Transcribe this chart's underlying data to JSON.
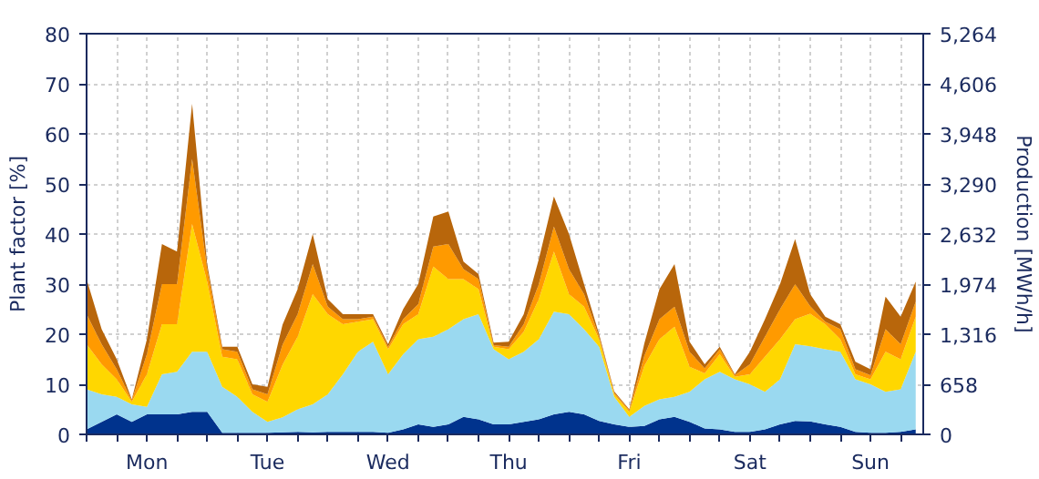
{
  "chart_data": {
    "type": "area",
    "stacked": true,
    "ylabel": "Plant factor [%]",
    "y2label": "Production [MWh/h]",
    "categories": [
      null,
      null,
      null,
      null,
      "Mon",
      null,
      null,
      null,
      null,
      null,
      null,
      null,
      "Tue",
      null,
      null,
      null,
      null,
      null,
      null,
      null,
      "Wed",
      null,
      null,
      null,
      null,
      null,
      null,
      null,
      "Thu",
      null,
      null,
      null,
      null,
      null,
      null,
      null,
      "Fri",
      null,
      null,
      null,
      null,
      null,
      null,
      null,
      "Sat",
      null,
      null,
      null,
      null,
      null,
      null,
      null,
      "Sun",
      null,
      null,
      null
    ],
    "series": [
      {
        "color": "#00338d",
        "values": [
          1,
          2.5,
          4,
          2.5,
          4,
          4,
          4,
          4.5,
          4.5,
          0.3,
          0.3,
          0.3,
          0.3,
          0.4,
          0.5,
          0.4,
          0.5,
          0.5,
          0.5,
          0.5,
          0.3,
          1,
          2,
          1.5,
          2,
          3.5,
          3,
          2,
          2,
          2.5,
          3,
          4,
          4.5,
          4,
          2.7,
          2,
          1.5,
          1.7,
          3,
          3.5,
          2.5,
          1.2,
          1,
          0.5,
          0.5,
          1,
          2,
          2.7,
          2.6,
          2,
          1.5,
          0.5,
          0.3,
          0.3,
          0.5,
          1
        ]
      },
      {
        "color": "#9ad9f0",
        "values": [
          8,
          5.5,
          3.5,
          3.5,
          1.5,
          8,
          8.5,
          12,
          12,
          9.2,
          7.2,
          4.2,
          2.2,
          3,
          4.5,
          5.6,
          7.5,
          11.5,
          16,
          18,
          11.7,
          15,
          17,
          18,
          19,
          19.5,
          21,
          15,
          13,
          14,
          16,
          20.5,
          19.5,
          17,
          14.8,
          5.5,
          2,
          4,
          4,
          4,
          6,
          9.8,
          11.5,
          10.5,
          9.5,
          7.5,
          9,
          15.3,
          15,
          15,
          15,
          10.5,
          9.7,
          8.2,
          8.5,
          15.5
        ]
      },
      {
        "color": "#ffd700",
        "values": [
          9,
          6,
          3.5,
          0.5,
          6.5,
          10,
          9.5,
          25.5,
          14,
          6,
          7.5,
          3.5,
          4,
          10.5,
          14.5,
          22,
          16,
          10,
          6,
          4.5,
          5,
          6,
          5,
          14,
          10,
          8,
          5,
          0.5,
          2,
          4,
          8,
          12,
          4,
          4.5,
          1.5,
          0.5,
          1,
          8,
          12,
          14,
          5,
          1.2,
          3.5,
          0.5,
          2,
          7,
          8,
          5,
          6.5,
          5,
          2.5,
          1,
          1,
          8,
          6,
          7
        ]
      },
      {
        "color": "#ff9a00",
        "values": [
          6,
          4,
          2,
          0.3,
          4,
          8,
          8,
          13,
          2.5,
          1.5,
          1.5,
          1,
          1.5,
          4,
          4.5,
          6,
          1.5,
          1,
          0.5,
          0.5,
          0.5,
          1,
          2,
          4,
          7,
          2,
          2,
          0.3,
          0.5,
          1.5,
          3,
          5,
          5,
          2.5,
          0.5,
          0.3,
          0.3,
          2,
          4,
          4,
          3,
          1,
          1,
          0.3,
          2,
          4,
          6,
          7,
          1.5,
          0.5,
          2,
          1,
          0.8,
          4.5,
          3,
          3
        ]
      },
      {
        "color": "#b8660b",
        "values": [
          7,
          3,
          2,
          0.2,
          3,
          8,
          6.5,
          11,
          1,
          0.5,
          1,
          1,
          1.5,
          4,
          5,
          6,
          1.5,
          1,
          1,
          0.5,
          0.5,
          2,
          4,
          6,
          6.5,
          1.5,
          1,
          0.5,
          1,
          2,
          5,
          6,
          7,
          2,
          0.5,
          0.3,
          0.2,
          2.5,
          6,
          8.5,
          2,
          0.8,
          0.5,
          0.2,
          2.5,
          3.5,
          5,
          9,
          2.4,
          1,
          1,
          1.5,
          1.2,
          6.5,
          5.5,
          4
        ]
      }
    ],
    "ylim": [
      0,
      80
    ],
    "yticks": [
      0,
      10,
      20,
      30,
      40,
      50,
      60,
      70,
      80
    ],
    "y2lim": [
      0,
      5264
    ],
    "y2ticks": [
      0,
      {
        "value": 658,
        "label": "658"
      },
      {
        "value": 1316,
        "label": "1,316"
      },
      {
        "value": 1974,
        "label": "1,974"
      },
      {
        "value": 2632,
        "label": "2,632"
      },
      {
        "value": 3290,
        "label": "3,290"
      },
      {
        "value": 3948,
        "label": "3,948"
      },
      {
        "value": 4606,
        "label": "4,606"
      },
      {
        "value": 5264,
        "label": "5,264"
      }
    ],
    "grid": true
  }
}
